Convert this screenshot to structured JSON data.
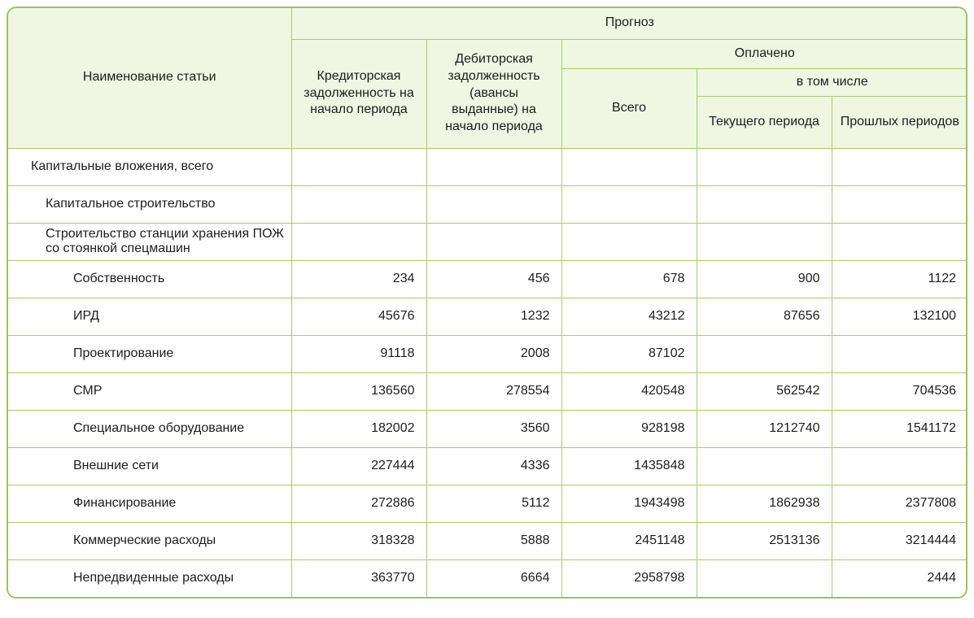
{
  "colors": {
    "border": "#a7cb6e",
    "outer_border": "#9cc35c",
    "header_bg": "#eff7e3",
    "text": "#1d1d1d"
  },
  "header": {
    "name_col": "Наименование статьи",
    "forecast": "Прогноз",
    "creditor": "Кредиторская задолженность на начало периода",
    "debitor": "Дебиторская задолженность (авансы выданные) на начало периода",
    "paid": "Оплачено",
    "total": "Всего",
    "including": "в том числе",
    "current_period": "Текущего периода",
    "past_periods": "Прошлых периодов"
  },
  "rows": [
    {
      "label": "Капитальные вложения, всего",
      "indent": 0,
      "values": [
        "",
        "",
        "",
        "",
        ""
      ]
    },
    {
      "label": "Капитальное строительство",
      "indent": 1,
      "values": [
        "",
        "",
        "",
        "",
        ""
      ]
    },
    {
      "label": "Строительство станции хранения ПОЖ со стоянкой спецмашин",
      "indent": 1,
      "values": [
        "",
        "",
        "",
        "",
        ""
      ]
    },
    {
      "label": "Собственность",
      "indent": 2,
      "values": [
        "234",
        "456",
        "678",
        "900",
        "1122"
      ]
    },
    {
      "label": "ИРД",
      "indent": 2,
      "values": [
        "45676",
        "1232",
        "43212",
        "87656",
        "132100"
      ]
    },
    {
      "label": "Проектирование",
      "indent": 2,
      "values": [
        "91118",
        "2008",
        "87102",
        "",
        ""
      ]
    },
    {
      "label": "СМР",
      "indent": 2,
      "values": [
        "136560",
        "278554",
        "420548",
        "562542",
        "704536"
      ]
    },
    {
      "label": "Специальное оборудование",
      "indent": 2,
      "values": [
        "182002",
        "3560",
        "928198",
        "1212740",
        "1541172"
      ]
    },
    {
      "label": "Внешние сети",
      "indent": 2,
      "values": [
        "227444",
        "4336",
        "1435848",
        "",
        ""
      ]
    },
    {
      "label": "Финансирование",
      "indent": 2,
      "values": [
        "272886",
        "5112",
        "1943498",
        "1862938",
        "2377808"
      ]
    },
    {
      "label": "Коммерческие расходы",
      "indent": 2,
      "values": [
        "318328",
        "5888",
        "2451148",
        "2513136",
        "3214444"
      ]
    },
    {
      "label": "Непредвиденные расходы",
      "indent": 2,
      "values": [
        "363770",
        "6664",
        "2958798",
        "",
        "2444"
      ]
    }
  ],
  "chart_data": {
    "type": "table",
    "title": "Прогноз",
    "columns": [
      "Наименование статьи",
      "Кредиторская задолженность на начало периода",
      "Дебиторская задолженность (авансы выданные) на начало периода",
      "Оплачено — Всего",
      "Оплачено — в том числе — Текущего периода",
      "Оплачено — в том числе — Прошлых периодов"
    ],
    "rows": [
      [
        "Капитальные вложения, всего",
        null,
        null,
        null,
        null,
        null
      ],
      [
        "Капитальное строительство",
        null,
        null,
        null,
        null,
        null
      ],
      [
        "Строительство станции хранения ПОЖ со стоянкой спецмашин",
        null,
        null,
        null,
        null,
        null
      ],
      [
        "Собственность",
        234,
        456,
        678,
        900,
        1122
      ],
      [
        "ИРД",
        45676,
        1232,
        43212,
        87656,
        132100
      ],
      [
        "Проектирование",
        91118,
        2008,
        87102,
        null,
        null
      ],
      [
        "СМР",
        136560,
        278554,
        420548,
        562542,
        704536
      ],
      [
        "Специальное оборудование",
        182002,
        3560,
        928198,
        1212740,
        1541172
      ],
      [
        "Внешние сети",
        227444,
        4336,
        1435848,
        null,
        null
      ],
      [
        "Финансирование",
        272886,
        5112,
        1943498,
        1862938,
        2377808
      ],
      [
        "Коммерческие расходы",
        318328,
        5888,
        2451148,
        2513136,
        3214444
      ],
      [
        "Непредвиденные расходы",
        363770,
        6664,
        2958798,
        null,
        2444
      ]
    ]
  }
}
